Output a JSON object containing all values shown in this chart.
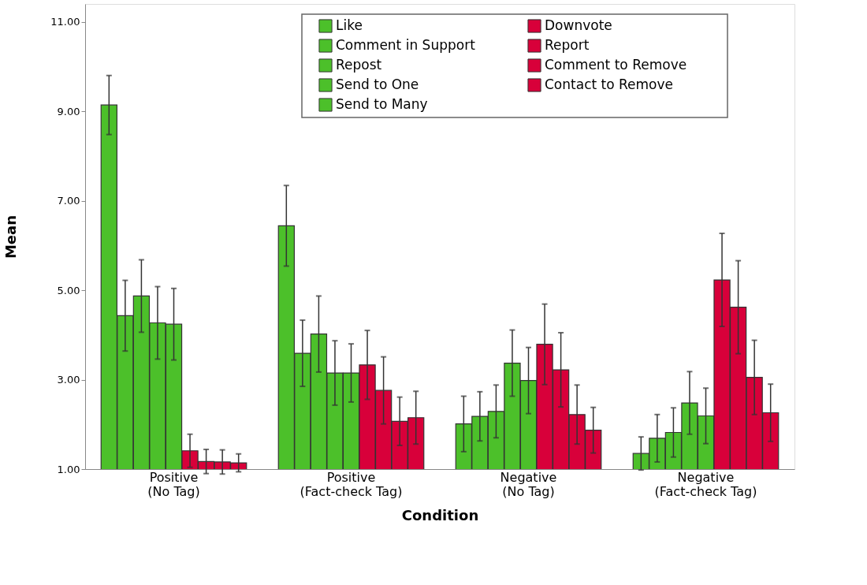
{
  "chart_data": {
    "type": "bar",
    "xlabel": "Condition",
    "ylabel": "Mean",
    "categories": [
      "Positive\n(No Tag)",
      "Positive\n(Fact-check Tag)",
      "Negative\n(No Tag)",
      "Negative\n(Fact-check Tag)"
    ],
    "ylim": [
      1,
      11.4
    ],
    "yticks": [
      {
        "value": 1,
        "label": "1.00"
      },
      {
        "value": 3,
        "label": "3.00"
      },
      {
        "value": 5,
        "label": "5.00"
      },
      {
        "value": 7,
        "label": "7.00"
      },
      {
        "value": 9,
        "label": "9.00"
      },
      {
        "value": 11,
        "label": "11.00"
      }
    ],
    "grid": false,
    "legend": "top right",
    "series": [
      {
        "name": "Like",
        "color": "#4cc02a",
        "values": [
          9.14,
          6.44,
          2.01,
          1.35
        ],
        "errors": [
          0.66,
          0.9,
          0.62,
          0.37
        ]
      },
      {
        "name": "Comment in Support",
        "color": "#4cc02a",
        "values": [
          4.43,
          3.59,
          2.18,
          1.69
        ],
        "errors": [
          0.79,
          0.74,
          0.55,
          0.53
        ]
      },
      {
        "name": "Repost",
        "color": "#4cc02a",
        "values": [
          4.87,
          4.02,
          2.29,
          1.82
        ],
        "errors": [
          0.81,
          0.85,
          0.59,
          0.55
        ]
      },
      {
        "name": "Send to One",
        "color": "#4cc02a",
        "values": [
          4.27,
          3.15,
          3.37,
          2.48
        ],
        "errors": [
          0.81,
          0.72,
          0.74,
          0.7
        ]
      },
      {
        "name": "Send to Many",
        "color": "#4cc02a",
        "values": [
          4.24,
          3.15,
          2.98,
          2.19
        ],
        "errors": [
          0.8,
          0.65,
          0.74,
          0.62
        ]
      },
      {
        "name": "Downvote",
        "color": "#d8003a",
        "values": [
          1.41,
          3.33,
          3.79,
          5.23
        ],
        "errors": [
          0.37,
          0.77,
          0.9,
          1.04
        ]
      },
      {
        "name": "Report",
        "color": "#d8003a",
        "values": [
          1.17,
          2.76,
          3.22,
          4.62
        ],
        "errors": [
          0.27,
          0.75,
          0.83,
          1.04
        ]
      },
      {
        "name": "Comment to Remove",
        "color": "#d8003a",
        "values": [
          1.16,
          2.07,
          2.22,
          3.05
        ],
        "errors": [
          0.27,
          0.54,
          0.66,
          0.83
        ]
      },
      {
        "name": "Contact to Remove",
        "color": "#d8003a",
        "values": [
          1.14,
          2.15,
          1.87,
          2.26
        ],
        "errors": [
          0.2,
          0.59,
          0.51,
          0.64
        ]
      }
    ]
  }
}
